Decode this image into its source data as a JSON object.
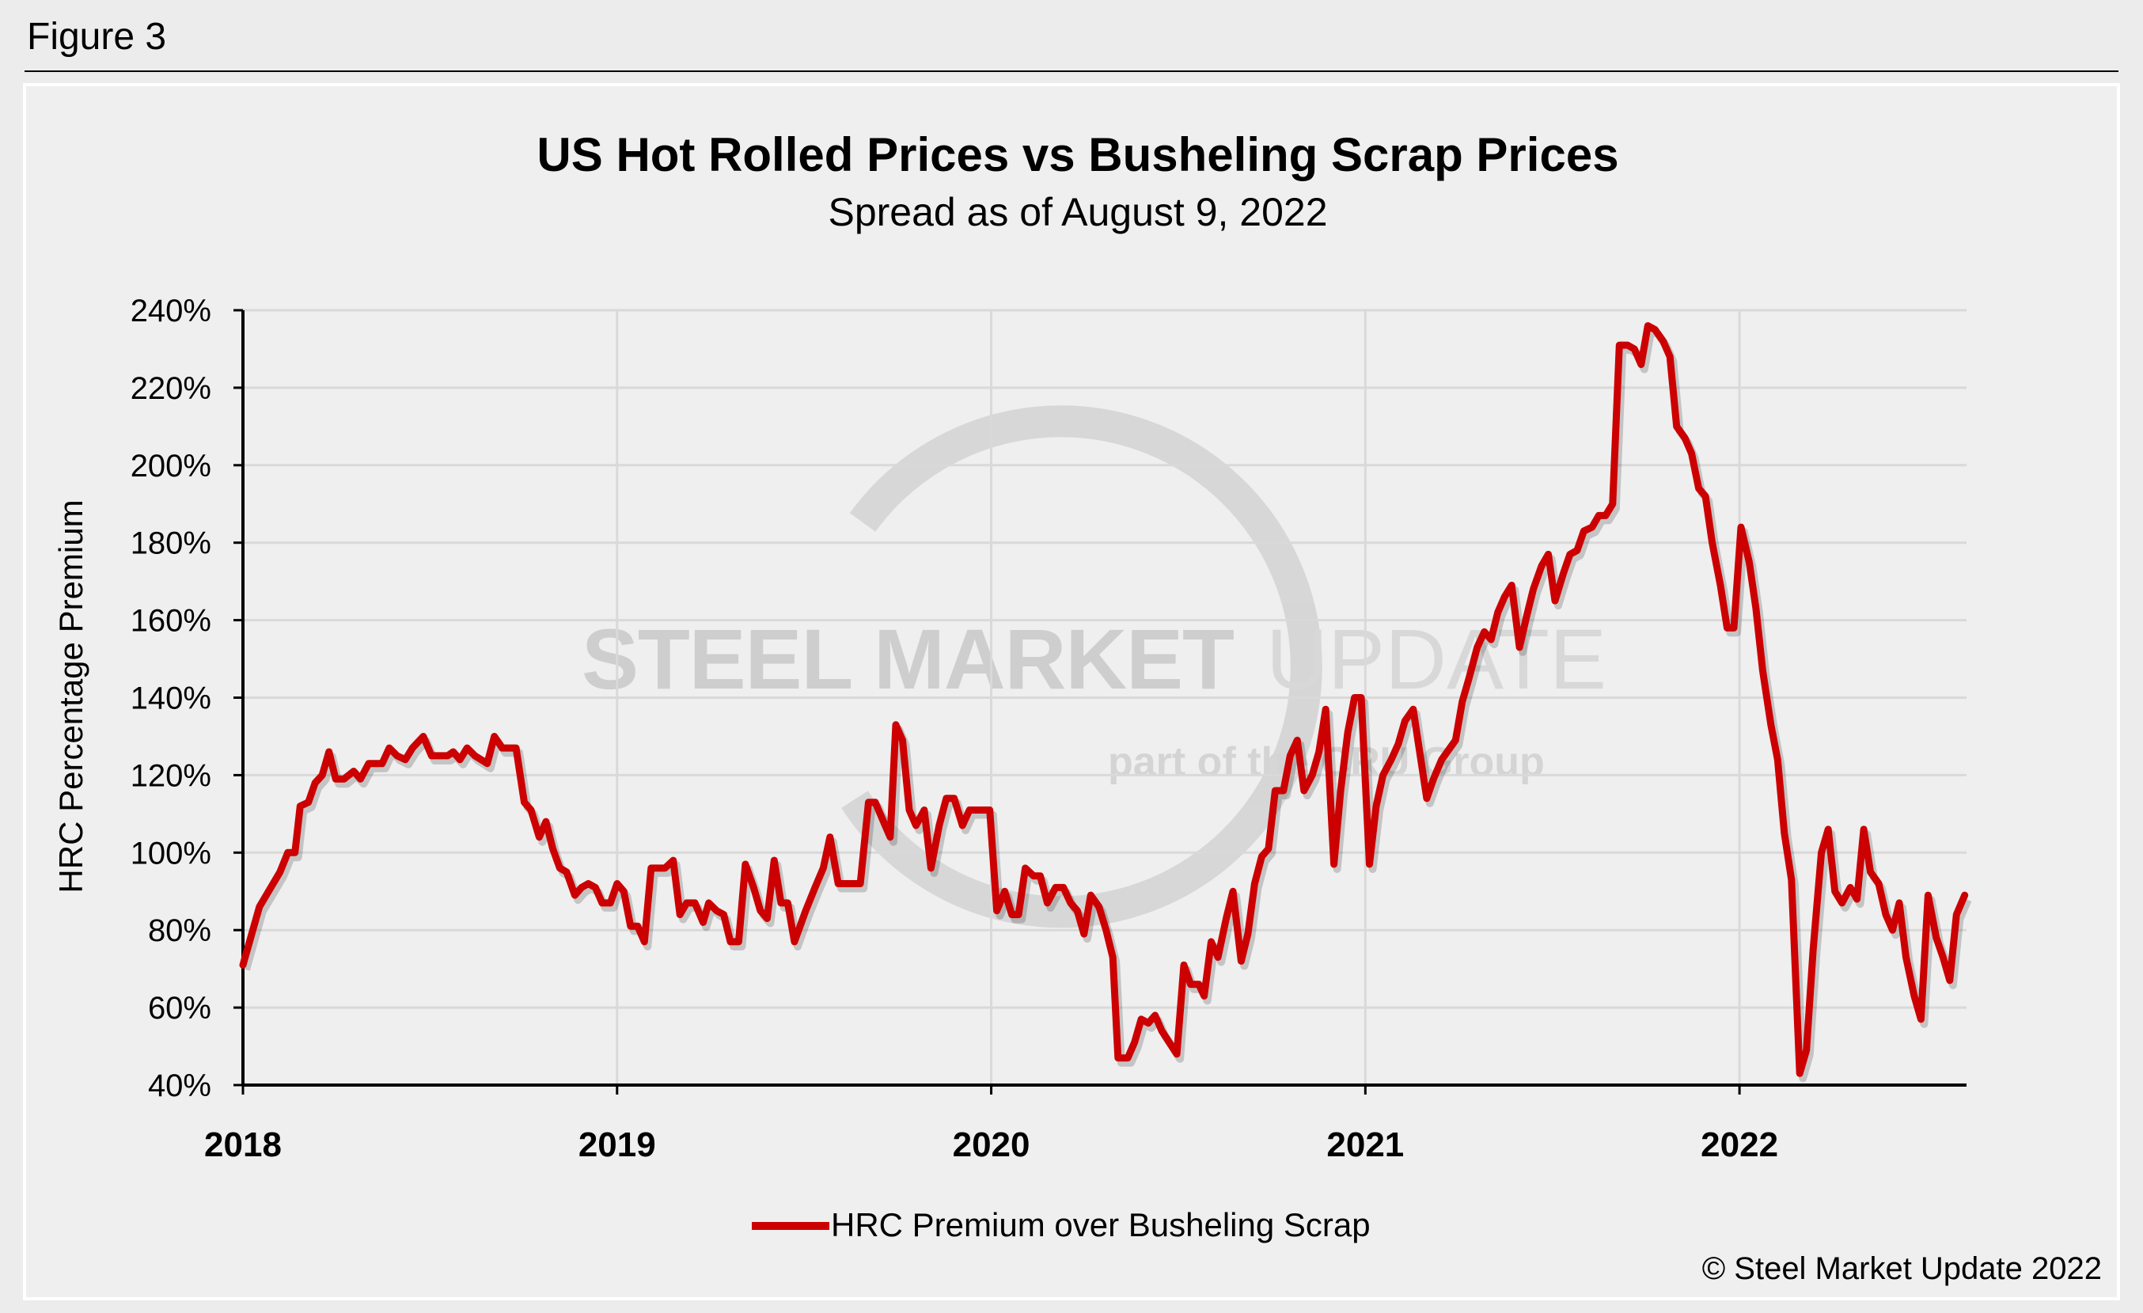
{
  "figure_label": "Figure 3",
  "copyright": "© Steel Market Update 2022",
  "watermark": {
    "line1_bold": "STEEL MARKET",
    "line1_light": "UPDATE",
    "line2": "part of the CRU Group"
  },
  "colors": {
    "series": "#cc0000",
    "grid": "#d9d9d9",
    "background": "#efefef",
    "watermark": "#c8c8c8"
  },
  "chart_data": {
    "type": "line",
    "title": "US Hot Rolled Prices vs Busheling Scrap Prices",
    "subtitle": "Spread as of August 9, 2022",
    "xlabel": "",
    "ylabel": "HRC Percentage Premium",
    "x_unit": "year",
    "xlim": [
      2018.0,
      2022.605
    ],
    "ylim": [
      40,
      240
    ],
    "y_ticks": [
      "40%",
      "60%",
      "80%",
      "100%",
      "120%",
      "140%",
      "160%",
      "180%",
      "200%",
      "220%",
      "240%"
    ],
    "y_tick_values": [
      40,
      60,
      80,
      100,
      120,
      140,
      160,
      180,
      200,
      220,
      240
    ],
    "x_ticks": [
      "2018",
      "2019",
      "2020",
      "2021",
      "2022"
    ],
    "x_tick_values": [
      2018,
      2019,
      2020,
      2021,
      2022
    ],
    "grid": true,
    "legend": "bottom-center",
    "series": [
      {
        "name": "HRC Premium over Busheling Scrap",
        "color": "#cc0000",
        "points": [
          [
            2018.0,
            71
          ],
          [
            2018.044,
            86
          ],
          [
            2018.099,
            95
          ],
          [
            2018.12,
            100
          ],
          [
            2018.139,
            100
          ],
          [
            2018.153,
            112
          ],
          [
            2018.175,
            113
          ],
          [
            2018.193,
            118
          ],
          [
            2018.212,
            120
          ],
          [
            2018.23,
            126
          ],
          [
            2018.248,
            119
          ],
          [
            2018.27,
            119
          ],
          [
            2018.296,
            121
          ],
          [
            2018.314,
            119
          ],
          [
            2018.336,
            123
          ],
          [
            2018.372,
            123
          ],
          [
            2018.391,
            127
          ],
          [
            2018.412,
            125
          ],
          [
            2018.434,
            124
          ],
          [
            2018.453,
            127
          ],
          [
            2018.482,
            130
          ],
          [
            2018.504,
            125
          ],
          [
            2018.547,
            125
          ],
          [
            2018.562,
            126
          ],
          [
            2018.58,
            124
          ],
          [
            2018.599,
            127
          ],
          [
            2018.62,
            125
          ],
          [
            2018.653,
            123
          ],
          [
            2018.672,
            130
          ],
          [
            2018.693,
            127
          ],
          [
            2018.73,
            127
          ],
          [
            2018.752,
            113
          ],
          [
            2018.77,
            111
          ],
          [
            2018.792,
            104
          ],
          [
            2018.81,
            108
          ],
          [
            2018.828,
            101
          ],
          [
            2018.847,
            96
          ],
          [
            2018.865,
            95
          ],
          [
            2018.887,
            89
          ],
          [
            2018.905,
            91
          ],
          [
            2018.923,
            92
          ],
          [
            2018.942,
            91
          ],
          [
            2018.96,
            87
          ],
          [
            2018.982,
            87
          ],
          [
            2019.0,
            92
          ],
          [
            2019.018,
            90
          ],
          [
            2019.036,
            81
          ],
          [
            2019.055,
            81
          ],
          [
            2019.073,
            77
          ],
          [
            2019.091,
            96
          ],
          [
            2019.128,
            96
          ],
          [
            2019.15,
            98
          ],
          [
            2019.168,
            84
          ],
          [
            2019.186,
            87
          ],
          [
            2019.208,
            87
          ],
          [
            2019.23,
            82
          ],
          [
            2019.245,
            87
          ],
          [
            2019.266,
            85
          ],
          [
            2019.285,
            84
          ],
          [
            2019.303,
            77
          ],
          [
            2019.325,
            77
          ],
          [
            2019.343,
            97
          ],
          [
            2019.365,
            91
          ],
          [
            2019.383,
            85
          ],
          [
            2019.401,
            83
          ],
          [
            2019.42,
            98
          ],
          [
            2019.438,
            87
          ],
          [
            2019.456,
            87
          ],
          [
            2019.474,
            77
          ],
          [
            2019.504,
            85
          ],
          [
            2019.529,
            91
          ],
          [
            2019.551,
            96
          ],
          [
            2019.569,
            104
          ],
          [
            2019.591,
            92
          ],
          [
            2019.613,
            92
          ],
          [
            2019.65,
            92
          ],
          [
            2019.672,
            113
          ],
          [
            2019.69,
            113
          ],
          [
            2019.712,
            108
          ],
          [
            2019.73,
            104
          ],
          [
            2019.745,
            133
          ],
          [
            2019.763,
            129
          ],
          [
            2019.781,
            111
          ],
          [
            2019.799,
            107
          ],
          [
            2019.821,
            111
          ],
          [
            2019.839,
            96
          ],
          [
            2019.861,
            107
          ],
          [
            2019.88,
            114
          ],
          [
            2019.901,
            114
          ],
          [
            2019.923,
            107
          ],
          [
            2019.942,
            111
          ],
          [
            2019.996,
            111
          ],
          [
            2020.015,
            85
          ],
          [
            2020.036,
            90
          ],
          [
            2020.055,
            84
          ],
          [
            2020.073,
            84
          ],
          [
            2020.091,
            96
          ],
          [
            2020.113,
            94
          ],
          [
            2020.131,
            94
          ],
          [
            2020.15,
            87
          ],
          [
            2020.172,
            91
          ],
          [
            2020.193,
            91
          ],
          [
            2020.212,
            87
          ],
          [
            2020.23,
            85
          ],
          [
            2020.248,
            79
          ],
          [
            2020.266,
            89
          ],
          [
            2020.288,
            86
          ],
          [
            2020.307,
            80
          ],
          [
            2020.325,
            73
          ],
          [
            2020.339,
            47
          ],
          [
            2020.365,
            47
          ],
          [
            2020.383,
            51
          ],
          [
            2020.401,
            57
          ],
          [
            2020.42,
            56
          ],
          [
            2020.438,
            58
          ],
          [
            2020.456,
            54
          ],
          [
            2020.496,
            48
          ],
          [
            2020.515,
            71
          ],
          [
            2020.533,
            66
          ],
          [
            2020.555,
            66
          ],
          [
            2020.569,
            63
          ],
          [
            2020.588,
            77
          ],
          [
            2020.606,
            73
          ],
          [
            2020.628,
            83
          ],
          [
            2020.646,
            90
          ],
          [
            2020.668,
            72
          ],
          [
            2020.686,
            79
          ],
          [
            2020.704,
            92
          ],
          [
            2020.723,
            99
          ],
          [
            2020.741,
            101
          ],
          [
            2020.759,
            116
          ],
          [
            2020.781,
            116
          ],
          [
            2020.799,
            125
          ],
          [
            2020.818,
            129
          ],
          [
            2020.836,
            116
          ],
          [
            2020.858,
            120
          ],
          [
            2020.876,
            126
          ],
          [
            2020.894,
            137
          ],
          [
            2020.916,
            97
          ],
          [
            2020.934,
            116
          ],
          [
            2020.953,
            131
          ],
          [
            2020.971,
            140
          ],
          [
            2020.989,
            140
          ],
          [
            2021.011,
            97
          ],
          [
            2021.029,
            112
          ],
          [
            2021.047,
            120
          ],
          [
            2021.069,
            124
          ],
          [
            2021.088,
            128
          ],
          [
            2021.106,
            134
          ],
          [
            2021.128,
            137
          ],
          [
            2021.164,
            114
          ],
          [
            2021.182,
            119
          ],
          [
            2021.204,
            124
          ],
          [
            2021.241,
            129
          ],
          [
            2021.259,
            139
          ],
          [
            2021.277,
            145
          ],
          [
            2021.299,
            153
          ],
          [
            2021.318,
            157
          ],
          [
            2021.336,
            155
          ],
          [
            2021.354,
            162
          ],
          [
            2021.372,
            166
          ],
          [
            2021.391,
            169
          ],
          [
            2021.412,
            153
          ],
          [
            2021.431,
            161
          ],
          [
            2021.449,
            168
          ],
          [
            2021.471,
            174
          ],
          [
            2021.489,
            177
          ],
          [
            2021.507,
            165
          ],
          [
            2021.529,
            172
          ],
          [
            2021.547,
            177
          ],
          [
            2021.566,
            178
          ],
          [
            2021.584,
            183
          ],
          [
            2021.606,
            184
          ],
          [
            2021.624,
            187
          ],
          [
            2021.642,
            187
          ],
          [
            2021.661,
            190
          ],
          [
            2021.679,
            231
          ],
          [
            2021.701,
            231
          ],
          [
            2021.719,
            230
          ],
          [
            2021.737,
            226
          ],
          [
            2021.755,
            236
          ],
          [
            2021.774,
            235
          ],
          [
            2021.796,
            232
          ],
          [
            2021.814,
            228
          ],
          [
            2021.832,
            210
          ],
          [
            2021.854,
            207
          ],
          [
            2021.872,
            203
          ],
          [
            2021.891,
            194
          ],
          [
            2021.909,
            192
          ],
          [
            2021.927,
            180
          ],
          [
            2021.949,
            169
          ],
          [
            2021.967,
            158
          ],
          [
            2021.985,
            158
          ],
          [
            2022.004,
            184
          ],
          [
            2022.026,
            175
          ],
          [
            2022.044,
            163
          ],
          [
            2022.062,
            147
          ],
          [
            2022.084,
            133
          ],
          [
            2022.102,
            124
          ],
          [
            2022.12,
            105
          ],
          [
            2022.139,
            93
          ],
          [
            2022.161,
            43
          ],
          [
            2022.179,
            49
          ],
          [
            2022.197,
            75
          ],
          [
            2022.219,
            100
          ],
          [
            2022.237,
            106
          ],
          [
            2022.255,
            90
          ],
          [
            2022.274,
            87
          ],
          [
            2022.296,
            91
          ],
          [
            2022.314,
            88
          ],
          [
            2022.332,
            106
          ],
          [
            2022.35,
            95
          ],
          [
            2022.372,
            92
          ],
          [
            2022.391,
            84
          ],
          [
            2022.409,
            80
          ],
          [
            2022.427,
            87
          ],
          [
            2022.445,
            73
          ],
          [
            2022.467,
            63
          ],
          [
            2022.485,
            57
          ],
          [
            2022.504,
            89
          ],
          [
            2022.526,
            78
          ],
          [
            2022.544,
            73
          ],
          [
            2022.562,
            67
          ],
          [
            2022.58,
            84
          ],
          [
            2022.602,
            89
          ]
        ]
      }
    ]
  }
}
